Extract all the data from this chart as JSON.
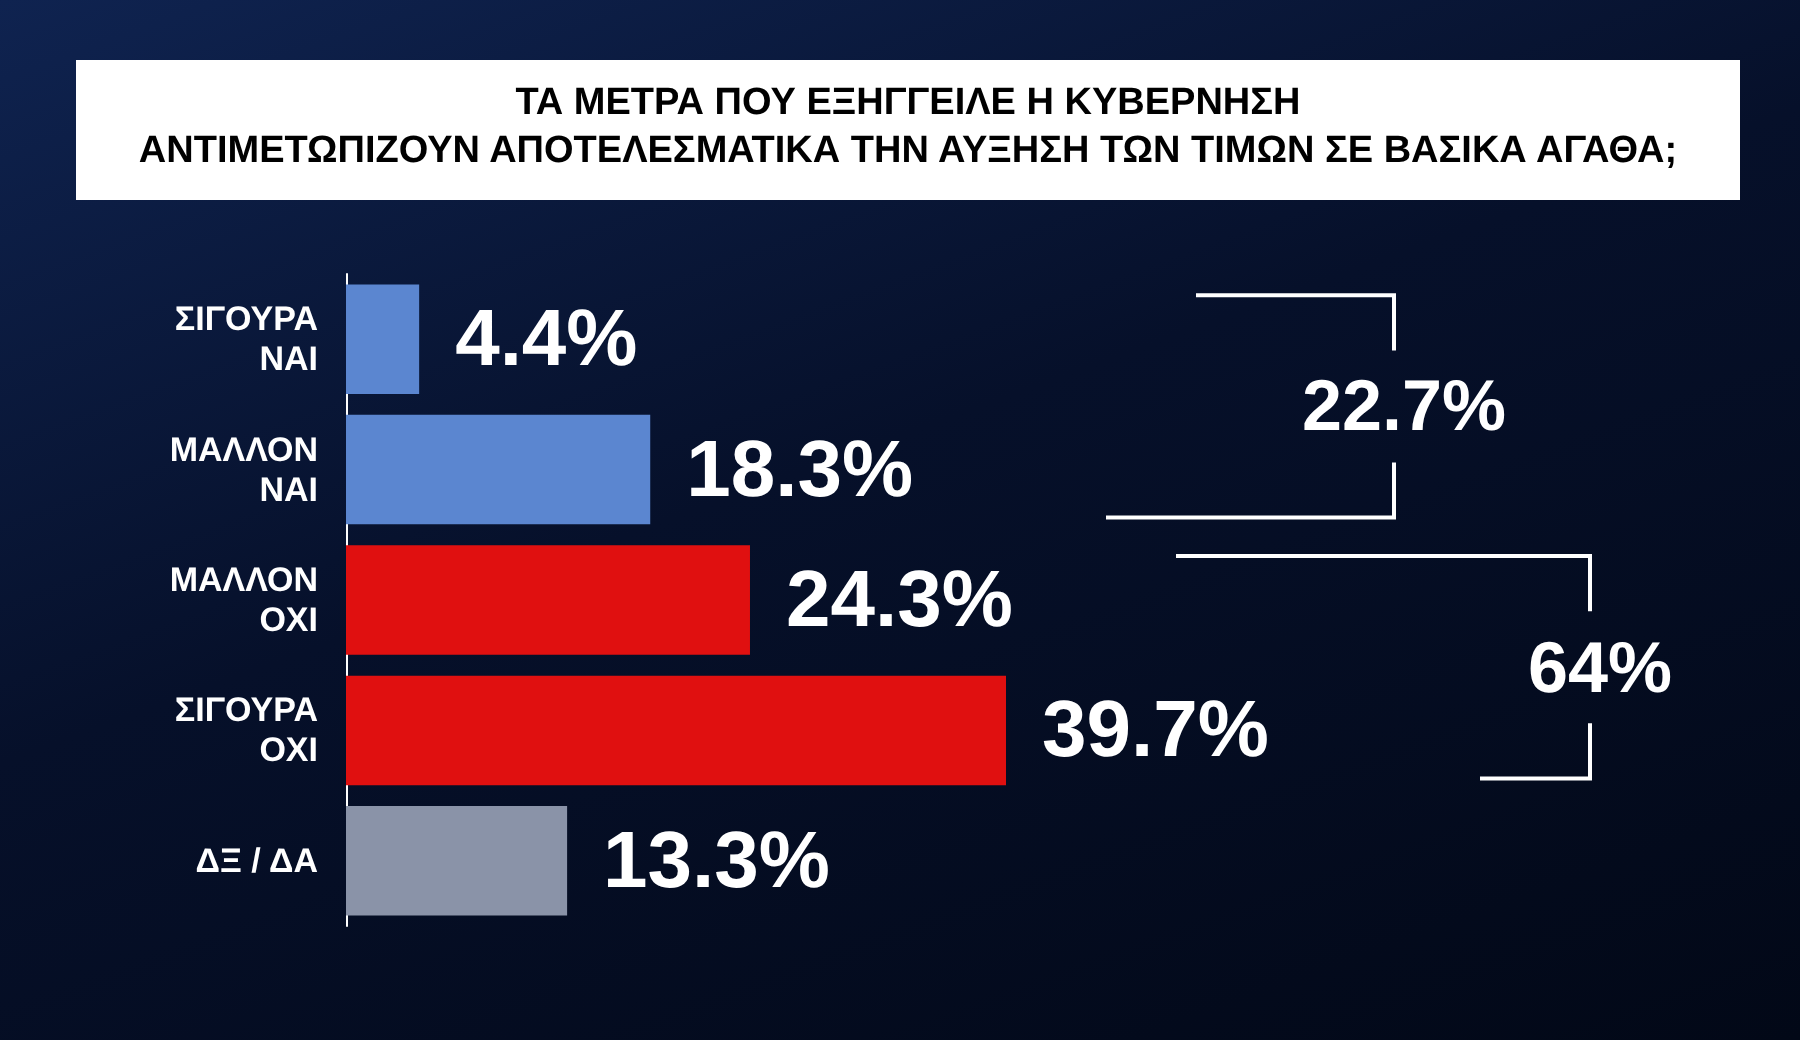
{
  "chart_data": {
    "type": "bar",
    "orientation": "horizontal",
    "title": "ΤΑ ΜΕΤΡΑ ΠΟΥ ΕΞΗΓΓΕΙΛΕ Η ΚΥΒΕΡΝΗΣΗ\nΑΝΤΙΜΕΤΩΠΙΖΟΥΝ ΑΠΟΤΕΛΕΣΜΑΤΙΚΑ ΤΗΝ ΑΥΞΗΣΗ ΤΩΝ ΤΙΜΩΝ ΣΕ ΒΑΣΙΚΑ ΑΓΑΘΑ;",
    "categories": [
      "ΣΙΓΟΥΡΑ\nΝΑΙ",
      "ΜΑΛΛΟΝ\nΝΑΙ",
      "ΜΑΛΛΟΝ\nΟΧΙ",
      "ΣΙΓΟΥΡΑ\nΟΧΙ",
      "ΔΞ / ΔΑ"
    ],
    "values": [
      4.4,
      18.3,
      24.3,
      39.7,
      13.3
    ],
    "colors": [
      "#5b86d0",
      "#5b86d0",
      "#e01010",
      "#e01010",
      "#8a93a8"
    ],
    "value_labels": [
      "4.4%",
      "18.3%",
      "24.3%",
      "39.7%",
      "13.3%"
    ],
    "annotations": [
      "22.7%",
      "64%"
    ]
  }
}
